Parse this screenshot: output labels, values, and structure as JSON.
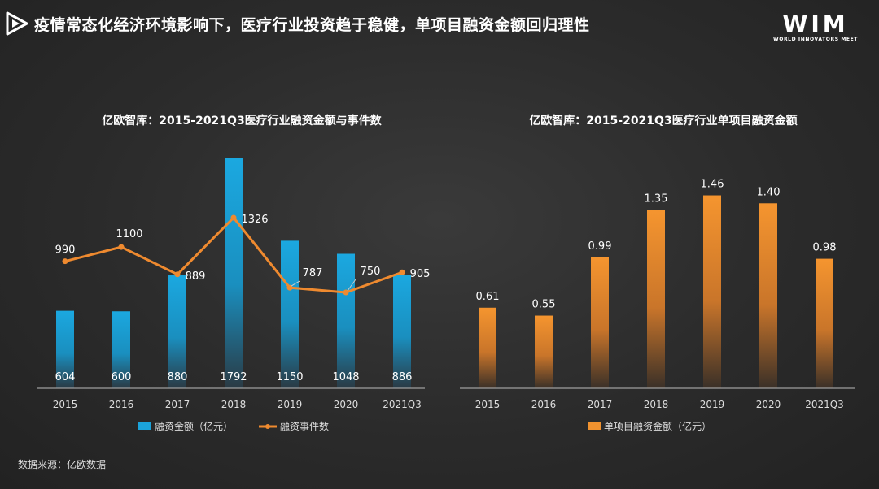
{
  "header": {
    "title": "疫情常态化经济环境影响下，医疗行业投资趋于稳健，单项目融资金额回归理性",
    "brand": "WIM",
    "brand_sub": "WORLD INNOVATORS MEET"
  },
  "source": "数据来源：亿欧数据",
  "chart_data": [
    {
      "type": "bar",
      "title": "亿欧智库：2015-2021Q3医疗行业融资金额与事件数",
      "categories": [
        "2015",
        "2016",
        "2017",
        "2018",
        "2019",
        "2020",
        "2021Q3"
      ],
      "series": [
        {
          "name": "融资金额（亿元）",
          "kind": "bar",
          "values": [
            604,
            600,
            880,
            1792,
            1150,
            1048,
            886
          ],
          "color": "#1ba3da"
        },
        {
          "name": "融资事件数",
          "kind": "line",
          "values": [
            990,
            1100,
            889,
            1326,
            787,
            750,
            905
          ],
          "color": "#ef8a2f"
        }
      ],
      "bar_ylim": [
        0,
        1900
      ],
      "line_ylim": [
        0,
        2400
      ]
    },
    {
      "type": "bar",
      "title": "亿欧智库：2015-2021Q3医疗行业单项目融资金额",
      "categories": [
        "2015",
        "2016",
        "2017",
        "2018",
        "2019",
        "2020",
        "2021Q3"
      ],
      "series": [
        {
          "name": "单项目融资金额（亿元）",
          "kind": "bar",
          "values": [
            0.61,
            0.55,
            0.99,
            1.35,
            1.46,
            1.4,
            0.98
          ],
          "value_labels": [
            "0.61",
            "0.55",
            "0.99",
            "1.35",
            "1.46",
            "1.40",
            "0.98"
          ],
          "color": "#f0922f"
        }
      ],
      "ylim": [
        0,
        1.66
      ]
    }
  ]
}
